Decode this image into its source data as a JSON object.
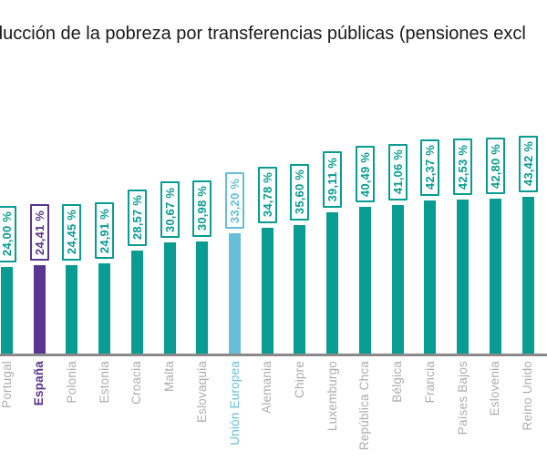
{
  "title": {
    "text": "ducción de la pobreza por transferencias públicas (pensiones excl"
  },
  "colors": {
    "bar_default": "#089C92",
    "bar_highlight_spain": "#59368F",
    "bar_eu_average": "#66BFDA",
    "axis_line": "#8A8A8A",
    "category_label": "#ADADAD",
    "title_text": "#1A1A1A",
    "value_box_background": "#FFFFFF"
  },
  "chart_data": {
    "type": "bar",
    "orientation": "vertical",
    "title": "ducción de la pobreza por transferencias públicas (pensiones excl",
    "unit": "%",
    "number_format": "es-ES comma decimal",
    "grid": false,
    "y_axis_shown": false,
    "x_axis_line_shown": true,
    "legend": "none",
    "ylim": [
      0,
      45
    ],
    "categories": [
      "Portugal",
      "España",
      "Polonia",
      "Estonia",
      "Croacia",
      "Malta",
      "Eslovaquia",
      "Unión Europea",
      "Alemania",
      "Chipre",
      "Luxemburgo",
      "República Chca",
      "Bélgica",
      "Francia",
      "Países Bajos",
      "Eslovenia",
      "Reino Unido"
    ],
    "values": [
      24.0,
      24.41,
      24.45,
      24.91,
      28.57,
      30.67,
      30.98,
      33.2,
      34.78,
      35.6,
      39.11,
      40.49,
      41.06,
      42.37,
      42.53,
      42.8,
      43.42
    ],
    "value_labels": [
      "24,00 %",
      "24,41 %",
      "24,45 %",
      "24,91 %",
      "28,57 %",
      "30,67 %",
      "30,98 %",
      "33,20 %",
      "34,78 %",
      "35,60 %",
      "39,11 %",
      "40,49 %",
      "41,06 %",
      "42,37 %",
      "42,53 %",
      "42,80 %",
      "43,42 %"
    ],
    "highlights": {
      "España": {
        "color": "#59368F",
        "category_label_bold": true
      },
      "Unión Europea": {
        "color": "#66BFDA",
        "category_label_bold": false
      }
    }
  }
}
